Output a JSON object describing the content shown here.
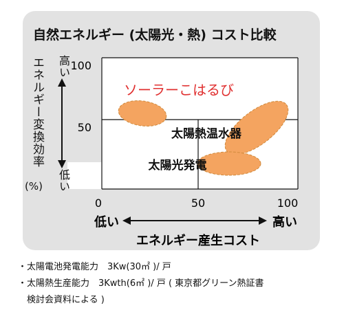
{
  "chart_data": {
    "type": "scatter",
    "title": "自然エネルギー (太陽光・熱) コスト比較",
    "xlabel": "エネルギー産生コスト",
    "ylabel": "エネルギー変換効率",
    "ylabel_unit": "(%)",
    "xlim": [
      0,
      100
    ],
    "ylim": [
      0,
      100
    ],
    "x_ticks": [
      "0",
      "50",
      "100"
    ],
    "y_ticks": [
      "100",
      "50"
    ],
    "x_low_label": "低い",
    "x_high_label": "高い",
    "y_high_label": "高い",
    "y_low_label": "低い",
    "regions": [
      {
        "name": "ソーラーこはるび",
        "x_range": [
          20,
          45
        ],
        "y_range": [
          40,
          60
        ],
        "color": "#f4a460",
        "label_color": "#e03030"
      },
      {
        "name": "太陽熱温水器",
        "x_range": [
          65,
          100
        ],
        "y_range": [
          18,
          65
        ],
        "color": "#f4a460",
        "label_color": "#111111"
      },
      {
        "name": "太陽光発電",
        "x_range": [
          50,
          85
        ],
        "y_range": [
          10,
          30
        ],
        "color": "#f4a460",
        "label_color": "#111111"
      }
    ],
    "grid": false
  },
  "notes": [
    "・太陽電池発電能力　3Kw(30㎡ )/ 戸",
    "・太陽熱生産能力　3Kwth(6㎡ )/ 戸 ( 東京都グリーン熱証書",
    "　検討会資料による )"
  ]
}
